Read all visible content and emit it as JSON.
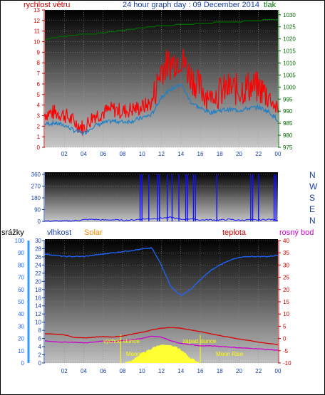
{
  "header": {
    "left_label": "rychlost větru",
    "title": "24 hour graph day : 09 December 2014",
    "right_label": "tlak"
  },
  "bottom_header": {
    "rain_label": "srážky",
    "humidity_label": "vlhkost",
    "solar_label": "Solar",
    "temp_label": "teplota",
    "dew_label": "rosný bod"
  },
  "annotations": {
    "sunrise": "východ slunce",
    "sunset": "západ slunce",
    "moonset": "Moonset",
    "moonrise": "Moon Rise"
  },
  "colors": {
    "wind": "#ff0000",
    "wind_avg": "#1e7fc6",
    "pressure": "#006a00",
    "direction": "#1010ff",
    "humidity": "#1e66ff",
    "temperature": "#dd0000",
    "dew_point": "#cc00cc",
    "solar": "#ffff33",
    "rain_axis": "#3399ff",
    "solar_label": "#ff8c00"
  },
  "chart_data": [
    {
      "type": "line",
      "title": "24 hour graph day : 09 December 2014",
      "xlabel": "",
      "x_ticks": [
        "02",
        "04",
        "06",
        "08",
        "10",
        "12",
        "14",
        "16",
        "18",
        "20",
        "22",
        "00"
      ],
      "y_left_label": "rychlost větru",
      "y_left_ticks": [
        0,
        1,
        2,
        3,
        4,
        5,
        6,
        7,
        8,
        9,
        10,
        11,
        12,
        13
      ],
      "ylim_left": [
        0,
        13
      ],
      "y_right_label": "tlak",
      "y_right_ticks": [
        975,
        980,
        985,
        990,
        995,
        1000,
        1005,
        1010,
        1015,
        1020,
        1025,
        1030
      ],
      "ylim_right": [
        975,
        1032
      ],
      "x_hours": [
        0,
        1,
        2,
        3,
        4,
        5,
        6,
        7,
        8,
        9,
        10,
        11,
        12,
        13,
        14,
        15,
        16,
        17,
        18,
        19,
        20,
        21,
        22,
        23,
        24
      ],
      "series": [
        {
          "name": "rychlost větru",
          "axis": "left",
          "values": [
            3.2,
            3.3,
            3.1,
            2.4,
            1.8,
            3.0,
            3.3,
            3.6,
            3.4,
            3.6,
            3.8,
            4.2,
            7.5,
            8.0,
            8.5,
            6.8,
            5.6,
            4.8,
            5.2,
            5.6,
            5.4,
            5.8,
            5.6,
            5.0,
            3.4
          ]
        },
        {
          "name": "",
          "axis": "left",
          "values": [
            2.2,
            2.3,
            2.1,
            1.6,
            1.3,
            2.0,
            2.3,
            2.5,
            2.4,
            2.5,
            2.8,
            3.1,
            4.8,
            5.5,
            6.0,
            4.3,
            3.7,
            3.3,
            3.5,
            3.6,
            3.5,
            3.7,
            3.8,
            3.4,
            2.6
          ]
        },
        {
          "name": "tlak",
          "axis": "right",
          "values": [
            1019.5,
            1020.5,
            1021,
            1021.5,
            1022,
            1022,
            1022.5,
            1023,
            1023.5,
            1024,
            1024.5,
            1025,
            1025.5,
            1025.5,
            1026,
            1026,
            1026.5,
            1026.5,
            1027,
            1027,
            1027,
            1027.5,
            1027.5,
            1028,
            1028
          ]
        }
      ]
    },
    {
      "type": "line",
      "x_ticks": [],
      "y_left_ticks": [
        0,
        90,
        180,
        270,
        360
      ],
      "ylim": [
        0,
        360
      ],
      "y_right_labels": [
        "N",
        "W",
        "S",
        "E",
        "N"
      ],
      "series": [
        {
          "name": "",
          "spikes_hours": [
            9.8,
            10.0,
            10.7,
            11.6,
            11.8,
            12.6,
            13.1,
            13.8,
            14.5,
            14.7,
            15.3,
            15.5,
            17.7,
            21.2,
            21.4,
            22.0,
            23.6,
            23.8
          ],
          "baseline_values": [
            2,
            3,
            2,
            5,
            12,
            15,
            10,
            12,
            8,
            10,
            18,
            20,
            25,
            30,
            15,
            20,
            10,
            12,
            10,
            15,
            8,
            12,
            10,
            15,
            10
          ]
        }
      ]
    },
    {
      "type": "line",
      "x_ticks": [
        "02",
        "04",
        "06",
        "08",
        "10",
        "12",
        "14",
        "16",
        "18",
        "20",
        "22",
        "00"
      ],
      "y_rain_ticks": [
        0,
        10,
        20,
        30,
        40,
        50,
        60,
        70,
        80,
        90,
        100
      ],
      "y_humidity_ticks": [
        0,
        2,
        4,
        6,
        8,
        10,
        12,
        14,
        16,
        18,
        20,
        22,
        24,
        26,
        28,
        30
      ],
      "y_right_ticks": [
        -10,
        -5,
        0,
        5,
        10,
        15,
        20,
        25,
        30,
        35,
        40
      ],
      "ylim_left": [
        0,
        100
      ],
      "ylim_right": [
        -10,
        40
      ],
      "x_hours": [
        0,
        1,
        2,
        3,
        4,
        5,
        6,
        7,
        8,
        9,
        10,
        11,
        12,
        13,
        14,
        15,
        16,
        17,
        18,
        19,
        20,
        21,
        22,
        23,
        24
      ],
      "series": [
        {
          "name": "vlhkost",
          "axis": "left",
          "values": [
            89,
            88,
            87,
            87,
            87,
            88,
            89,
            90,
            91,
            92,
            93,
            94,
            80,
            62,
            55,
            60,
            68,
            75,
            80,
            84,
            86,
            87,
            87,
            87,
            88
          ]
        },
        {
          "name": "teplota",
          "axis": "right",
          "values": [
            2.0,
            1.8,
            1.5,
            0.5,
            0.2,
            0.5,
            0.8,
            0.6,
            1.0,
            1.8,
            2.5,
            3.5,
            4.2,
            4.5,
            4.2,
            3.5,
            2.8,
            2.0,
            1.2,
            0.5,
            -0.2,
            -0.8,
            -1.5,
            -2.0,
            -2.5
          ]
        },
        {
          "name": "rosný bod",
          "axis": "right",
          "values": [
            -1.0,
            -1.3,
            -1.5,
            -1.5,
            -1.8,
            -1.5,
            -1.0,
            -1.2,
            -0.8,
            -0.5,
            0.0,
            1.0,
            0.5,
            -1.0,
            -2.0,
            -2.5,
            -3.0,
            -3.0,
            -3.2,
            -3.5,
            -3.8,
            -4.0,
            -4.2,
            -4.5,
            -4.8
          ]
        },
        {
          "name": "Solar",
          "axis": "right",
          "values": [
            -10,
            -10,
            -10,
            -10,
            -10,
            -10,
            -10,
            -10,
            -10,
            -9,
            -6,
            -4,
            -2.5,
            -2.8,
            -4.5,
            -8,
            -10,
            -10,
            -10,
            -10,
            -10,
            -10,
            -10,
            -10,
            -10
          ]
        }
      ],
      "sunrise_hour": 7.8,
      "sunset_hour": 16.0,
      "moonset_hour": 8.6,
      "moonrise_hour": 19.9
    }
  ]
}
